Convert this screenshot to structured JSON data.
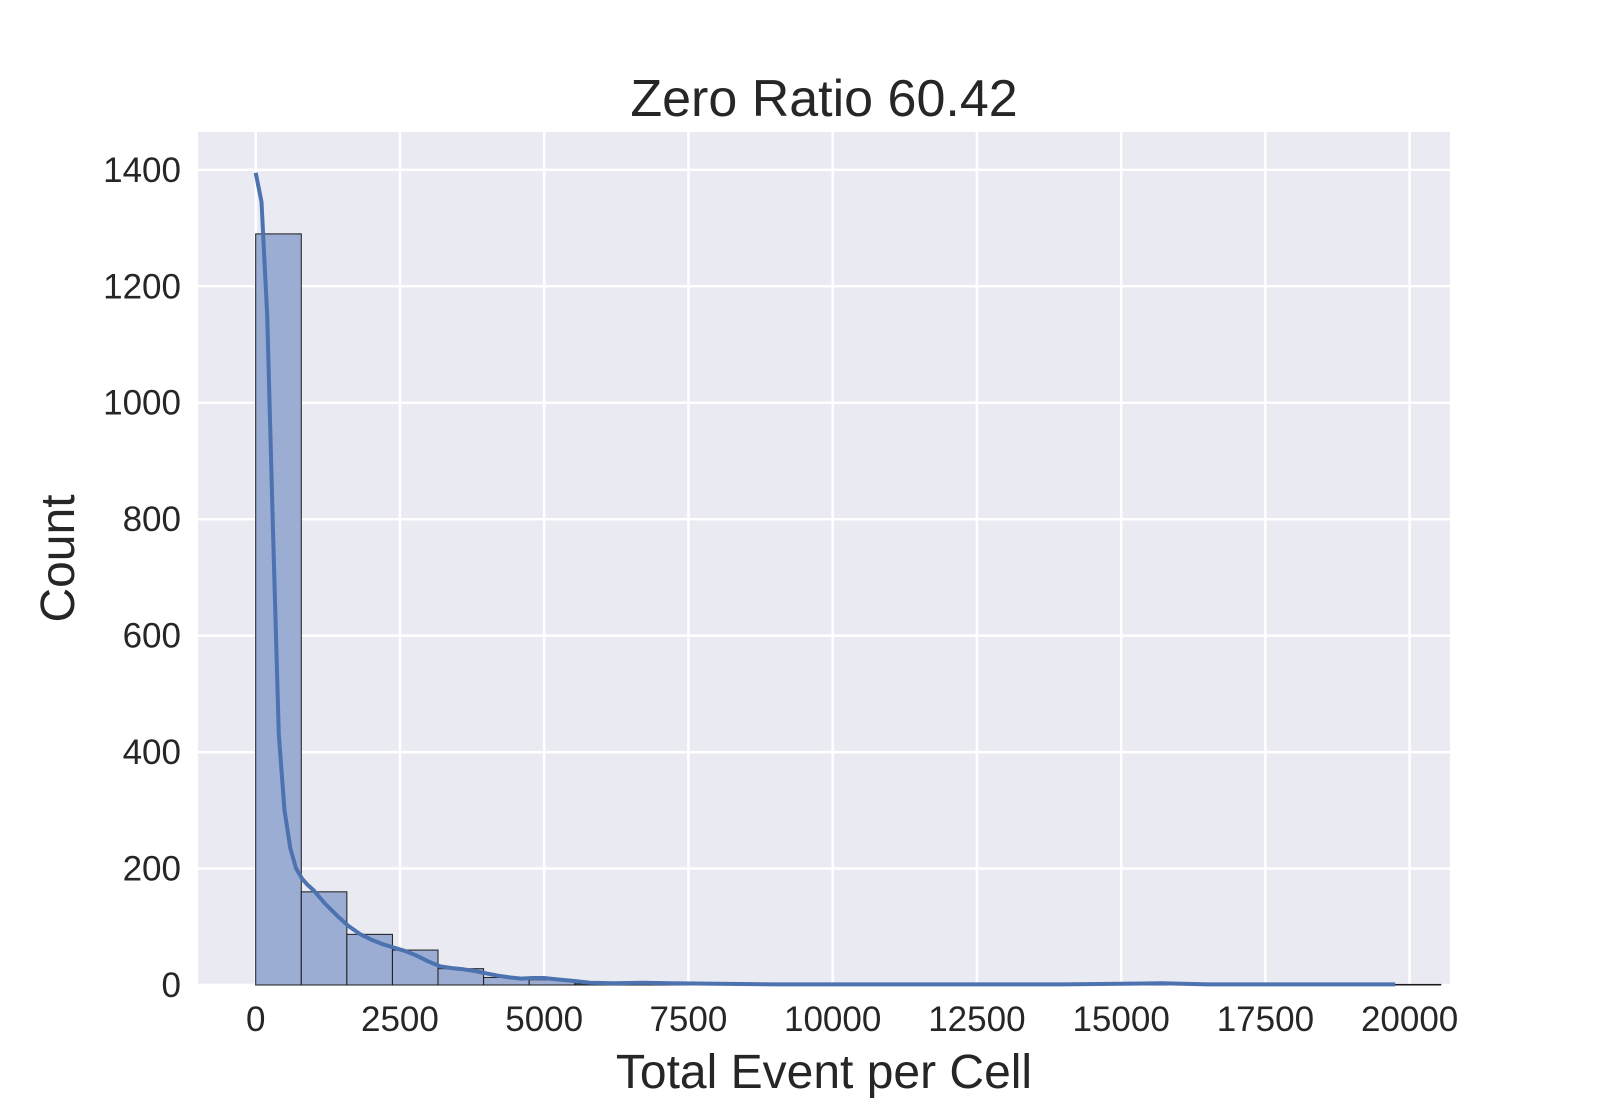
{
  "chart_data": {
    "type": "histogram",
    "title": "Zero Ratio 60.42",
    "xlabel": "Total Event per Cell",
    "ylabel": "Count",
    "xlim": [
      -1000,
      20700
    ],
    "ylim": [
      0,
      1465
    ],
    "grid": true,
    "legend": "none",
    "x_ticks": [
      0,
      2500,
      5000,
      7500,
      10000,
      12500,
      15000,
      17500,
      20000
    ],
    "y_ticks": [
      0,
      200,
      400,
      600,
      800,
      1000,
      1200,
      1400
    ],
    "bins": [
      {
        "x0": 0,
        "x1": 790,
        "count": 1290
      },
      {
        "x0": 790,
        "x1": 1580,
        "count": 160
      },
      {
        "x0": 1580,
        "x1": 2370,
        "count": 87
      },
      {
        "x0": 2370,
        "x1": 3160,
        "count": 60
      },
      {
        "x0": 3160,
        "x1": 3950,
        "count": 28
      },
      {
        "x0": 3950,
        "x1": 4740,
        "count": 13
      },
      {
        "x0": 4740,
        "x1": 5530,
        "count": 9
      },
      {
        "x0": 5530,
        "x1": 6320,
        "count": 2
      },
      {
        "x0": 6320,
        "x1": 7110,
        "count": 1
      },
      {
        "x0": 7110,
        "x1": 7900,
        "count": 1
      },
      {
        "x0": 7900,
        "x1": 8690,
        "count": 1
      },
      {
        "x0": 15010,
        "x1": 15800,
        "count": 1
      },
      {
        "x0": 19750,
        "x1": 20540,
        "count": 1
      }
    ],
    "kde": {
      "x": [
        0,
        100,
        200,
        300,
        400,
        500,
        600,
        700,
        800,
        900,
        1000,
        1200,
        1400,
        1600,
        1800,
        2000,
        2200,
        2400,
        2600,
        2800,
        3000,
        3200,
        3400,
        3600,
        3800,
        4000,
        4200,
        4400,
        4600,
        4800,
        5000,
        5200,
        5500,
        5800,
        6200,
        6700,
        7200,
        8000,
        9000,
        10000,
        11000,
        12000,
        13000,
        14000,
        15000,
        15700,
        16500,
        17500,
        18500,
        19750
      ],
      "y": [
        1395,
        1345,
        1150,
        780,
        430,
        300,
        235,
        200,
        183,
        172,
        163,
        140,
        120,
        102,
        88,
        78,
        70,
        64,
        58,
        50,
        40,
        32,
        29,
        27,
        24,
        20,
        16,
        13,
        11,
        12,
        12,
        10,
        7,
        4,
        3,
        4,
        3,
        2,
        1,
        1,
        1,
        1,
        1,
        1,
        2,
        3,
        1,
        1,
        1,
        1
      ]
    },
    "colors": {
      "background": "#eaeaf2",
      "grid": "#ffffff",
      "bar_fill": "#9badd3",
      "bar_edge": "#1a1a1a",
      "kde_line": "#4c72b0"
    }
  }
}
